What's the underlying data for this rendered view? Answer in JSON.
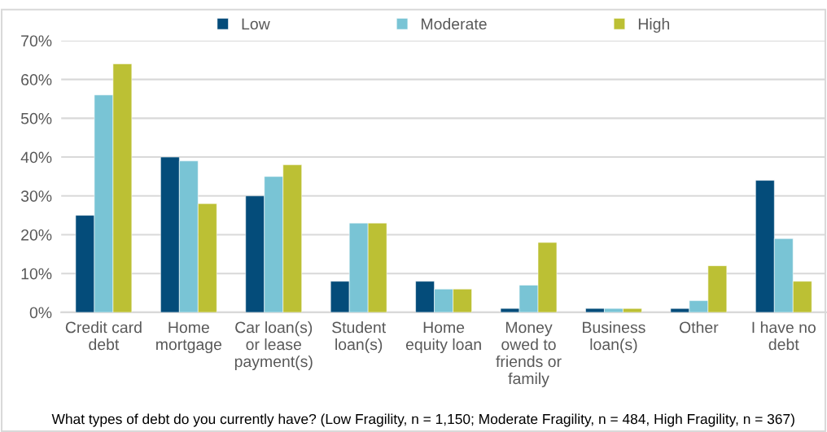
{
  "chart_data": {
    "type": "bar",
    "categories": [
      "Credit card\ndebt",
      "Home\nmortgage",
      "Car loan(s)\nor lease\npayment(s)",
      "Student\nloan(s)",
      "Home\nequity loan",
      "Money\nowed to\nfriends or\nfamily",
      "Business\nloan(s)",
      "Other",
      "I have no\ndebt"
    ],
    "series": [
      {
        "name": "Low",
        "color": "#044c7a",
        "values": [
          25,
          40,
          30,
          8,
          8,
          1,
          1,
          1,
          34
        ]
      },
      {
        "name": "Moderate",
        "color": "#79c4d5",
        "values": [
          56,
          39,
          35,
          23,
          6,
          7,
          1,
          3,
          19
        ]
      },
      {
        "name": "High",
        "color": "#bcc034",
        "values": [
          64,
          28,
          38,
          23,
          6,
          18,
          1,
          12,
          8
        ]
      }
    ],
    "ylim": [
      0,
      70
    ],
    "yticks": [
      {
        "value": 0,
        "label": "0%"
      },
      {
        "value": 10,
        "label": "10%"
      },
      {
        "value": 20,
        "label": "20%"
      },
      {
        "value": 30,
        "label": "30%"
      },
      {
        "value": 40,
        "label": "40%"
      },
      {
        "value": 50,
        "label": "50%"
      },
      {
        "value": 60,
        "label": "60%"
      },
      {
        "value": 70,
        "label": "70%"
      }
    ],
    "grid": "y",
    "legend": "top",
    "annotations": [
      "What types of debt do you currently have? (Low Fragility, n = 1,150; Moderate Fragility, n = 484, High Fragility, n = 367)"
    ]
  }
}
